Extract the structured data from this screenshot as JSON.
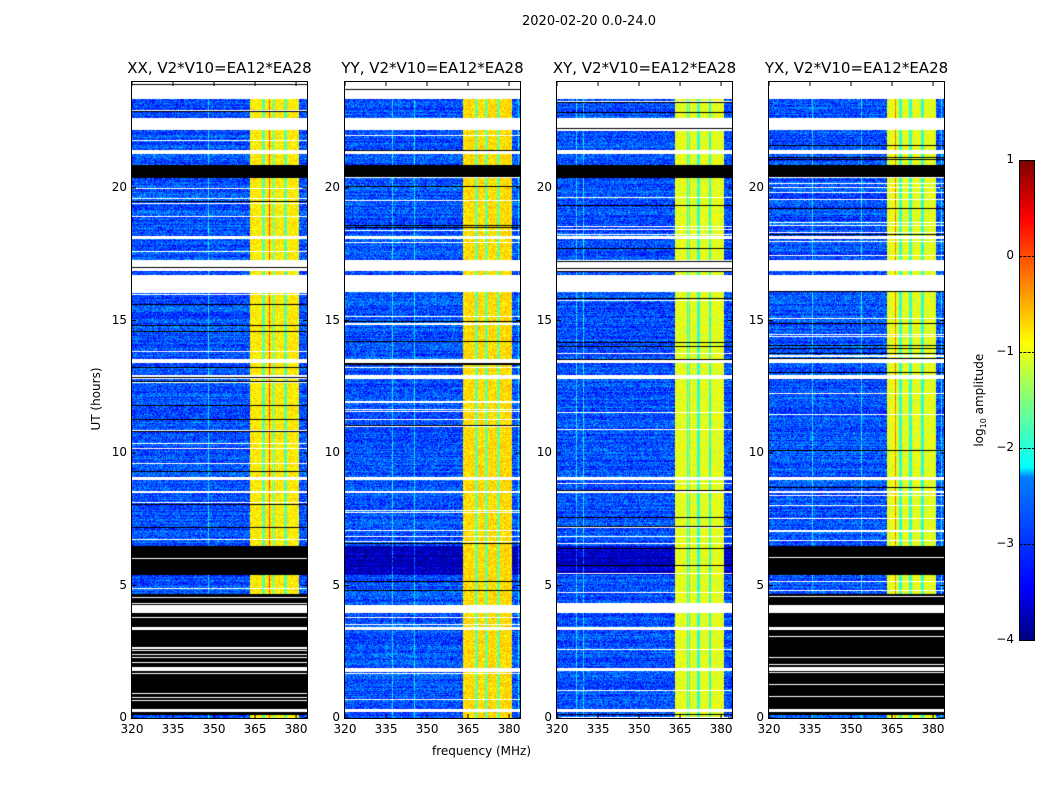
{
  "chart_data": {
    "type": "heatmap",
    "title": "2020-02-20 0.0-24.0",
    "xlabel": "frequency (MHz)",
    "ylabel": "UT (hours)",
    "xlim": [
      320,
      384
    ],
    "ylim": [
      0,
      24
    ],
    "xticks": [
      320,
      335,
      350,
      365,
      380
    ],
    "yticks": [
      0,
      5,
      10,
      15,
      20
    ],
    "colorbar": {
      "label": "log10 amplitude",
      "label_main": "log",
      "label_sub": "10",
      "label_rest": " amplitude",
      "range": [
        -4,
        1
      ],
      "ticks": [
        -4,
        -3,
        -2,
        -1,
        0,
        1
      ],
      "tick_labels": [
        "−4",
        "−3",
        "−2",
        "−1",
        "0",
        "1"
      ],
      "colormap": "jet"
    },
    "background_level": -3,
    "band_mhz": [
      363,
      381
    ],
    "band_level": -0.8,
    "panels": [
      {
        "title": "XX, V2*V10=EA12*EA28",
        "black_low": true
      },
      {
        "title": "YY, V2*V10=EA12*EA28",
        "black_low": false
      },
      {
        "title": "XY, V2*V10=EA12*EA28",
        "black_low": false
      },
      {
        "title": "YX, V2*V10=EA12*EA28",
        "black_low": true
      }
    ],
    "flagged_hours": [
      [
        23.36,
        24
      ],
      [
        22.2,
        22.65
      ],
      [
        21.3,
        21.45
      ],
      [
        16.9,
        17.3
      ],
      [
        16.1,
        16.75
      ],
      [
        18.1,
        18.2
      ],
      [
        13.4,
        13.55
      ],
      [
        12.8,
        12.95
      ],
      [
        9.0,
        9.1
      ],
      [
        8.5,
        8.6
      ],
      [
        4.0,
        4.3
      ],
      [
        3.35,
        3.45
      ],
      [
        1.8,
        1.9
      ],
      [
        0.25,
        0.35
      ]
    ],
    "zero_hours": [
      [
        20.4,
        20.9
      ],
      [
        6.5,
        5.4
      ]
    ]
  }
}
